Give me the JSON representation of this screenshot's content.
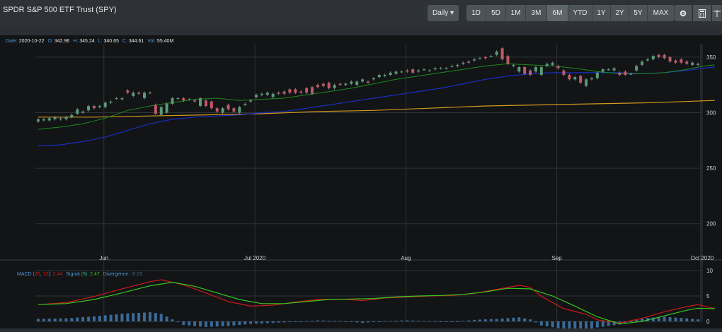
{
  "header": {
    "title": "SPDR S&P 500 ETF Trust (SPY)",
    "interval_label": "Daily",
    "ranges": [
      "1D",
      "5D",
      "1M",
      "3M",
      "6M",
      "YTD",
      "1Y",
      "2Y",
      "5Y",
      "MAX"
    ],
    "selected_range": "6M",
    "icons": [
      "settings-gear-icon",
      "calculator-icon",
      "scale-icon"
    ]
  },
  "ohlc_info": {
    "date_label": "Date:",
    "date": "2020-10-22",
    "open_label": "O:",
    "open": "342.96",
    "high_label": "H:",
    "high": "345.24",
    "low_label": "L:",
    "low": "340.65",
    "close_label": "C:",
    "close": "344.61",
    "vol_label": "Vol:",
    "volume": "55.40M"
  },
  "macd_info": {
    "prefix": "MACD (",
    "fast": "26",
    "sep": ", ",
    "slow": "12",
    "close_paren": "):",
    "macd_value": "2.44",
    "signal_label": "Signal (",
    "signal_period": "9",
    "signal_close": "):",
    "signal_value": "2.47",
    "div_label": "Divergence:",
    "div_value": "-0.03"
  },
  "colors": {
    "up": "#5a9a77",
    "down": "#c05a66",
    "ma_short": "#1d8a1d",
    "ma_mid": "#1a2ec0",
    "ma_long": "#d39a20",
    "macd": "#d01818",
    "signal": "#35c81e",
    "hist": "#3a6a98",
    "grid": "#2f3337"
  },
  "chart_data": [
    {
      "type": "candlestick",
      "x_ticks": [
        "Jun",
        "Jul 2020",
        "Aug",
        "Sep",
        "Oct 2020"
      ],
      "ylim": [
        175,
        362
      ],
      "y_ticks": [
        200,
        250,
        300,
        350
      ],
      "grid": true,
      "candles": [
        [
          292,
          294
        ],
        [
          293,
          294
        ],
        [
          293,
          295
        ],
        [
          294,
          296
        ],
        [
          294,
          295
        ],
        [
          294,
          296
        ],
        [
          296,
          298
        ],
        [
          299,
          303
        ],
        [
          300,
          301
        ],
        [
          302,
          306
        ],
        [
          306,
          304
        ],
        [
          305,
          306
        ],
        [
          305,
          309
        ],
        [
          309,
          310
        ],
        [
          313,
          313
        ],
        [
          312,
          313
        ],
        [
          320,
          318
        ],
        [
          315,
          318
        ],
        [
          318,
          317
        ],
        [
          313,
          318
        ],
        [
          318,
          318
        ],
        [
          307,
          299
        ],
        [
          298,
          305
        ],
        [
          300,
          308
        ],
        [
          308,
          313
        ],
        [
          313,
          313
        ],
        [
          313,
          311
        ],
        [
          312,
          312
        ],
        [
          311,
          310
        ],
        [
          306,
          313
        ],
        [
          311,
          306
        ],
        [
          310,
          304
        ],
        [
          304,
          301
        ],
        [
          300,
          304
        ],
        [
          307,
          303
        ],
        [
          304,
          301
        ],
        [
          300,
          305
        ],
        [
          307,
          308
        ],
        [
          310,
          311
        ],
        [
          314,
          316
        ],
        [
          316,
          317
        ],
        [
          316,
          318
        ],
        [
          314,
          317
        ],
        [
          318,
          317
        ],
        [
          319,
          317
        ],
        [
          321,
          318
        ],
        [
          321,
          318
        ],
        [
          319,
          318
        ],
        [
          322,
          318
        ],
        [
          323,
          317
        ],
        [
          325,
          323
        ],
        [
          326,
          324
        ],
        [
          327,
          322
        ],
        [
          322,
          325
        ],
        [
          326,
          325
        ],
        [
          325,
          326
        ],
        [
          326,
          328
        ],
        [
          325,
          328
        ],
        [
          328,
          330
        ],
        [
          328,
          327
        ],
        [
          330,
          331
        ],
        [
          332,
          334
        ],
        [
          333,
          334
        ],
        [
          334,
          336
        ],
        [
          335,
          337
        ],
        [
          337,
          337
        ],
        [
          338,
          337
        ],
        [
          339,
          336
        ],
        [
          337,
          338
        ],
        [
          339,
          339
        ],
        [
          338,
          338
        ],
        [
          339,
          340
        ],
        [
          340,
          340
        ],
        [
          340,
          340
        ],
        [
          342,
          342
        ],
        [
          342,
          343
        ],
        [
          344,
          345
        ],
        [
          346,
          345
        ],
        [
          347,
          348
        ],
        [
          349,
          349
        ],
        [
          350,
          349
        ],
        [
          351,
          351
        ],
        [
          352,
          355
        ],
        [
          358,
          348
        ],
        [
          351,
          344
        ],
        [
          342,
          343
        ],
        [
          337,
          341
        ],
        [
          341,
          335
        ],
        [
          338,
          334
        ],
        [
          337,
          341
        ],
        [
          334,
          341
        ],
        [
          342,
          344
        ],
        [
          343,
          345
        ],
        [
          342,
          340
        ],
        [
          338,
          334
        ],
        [
          334,
          330
        ],
        [
          330,
          332
        ],
        [
          333,
          327
        ],
        [
          324,
          330
        ],
        [
          330,
          331
        ],
        [
          331,
          336
        ],
        [
          337,
          339
        ],
        [
          339,
          339
        ],
        [
          338,
          340
        ],
        [
          336,
          334
        ],
        [
          337,
          334
        ],
        [
          335,
          335
        ],
        [
          338,
          342
        ],
        [
          343,
          346
        ],
        [
          347,
          348
        ],
        [
          348,
          351
        ],
        [
          352,
          350
        ],
        [
          352,
          349
        ],
        [
          350,
          346
        ],
        [
          347,
          345
        ],
        [
          348,
          345
        ],
        [
          346,
          344
        ],
        [
          343,
          345
        ],
        [
          343,
          344
        ]
      ],
      "ma_short": [
        [
          0,
          285
        ],
        [
          4,
          287
        ],
        [
          8,
          290
        ],
        [
          12,
          295
        ],
        [
          16,
          302
        ],
        [
          20,
          306
        ],
        [
          24,
          309
        ],
        [
          28,
          312
        ],
        [
          32,
          313
        ],
        [
          36,
          311
        ],
        [
          40,
          312
        ],
        [
          44,
          313
        ],
        [
          48,
          316
        ],
        [
          52,
          319
        ],
        [
          56,
          322
        ],
        [
          60,
          326
        ],
        [
          64,
          330
        ],
        [
          68,
          333
        ],
        [
          72,
          336
        ],
        [
          76,
          339
        ],
        [
          80,
          342
        ],
        [
          84,
          344
        ],
        [
          88,
          343
        ],
        [
          92,
          342
        ],
        [
          96,
          340
        ],
        [
          100,
          337
        ],
        [
          104,
          335
        ],
        [
          108,
          335
        ],
        [
          112,
          336
        ],
        [
          116,
          339
        ],
        [
          119,
          342
        ],
        [
          121,
          343
        ]
      ],
      "ma_mid": [
        [
          0,
          270
        ],
        [
          4,
          271
        ],
        [
          8,
          274
        ],
        [
          12,
          278
        ],
        [
          16,
          284
        ],
        [
          20,
          290
        ],
        [
          24,
          294
        ],
        [
          28,
          296
        ],
        [
          32,
          297
        ],
        [
          36,
          298
        ],
        [
          40,
          300
        ],
        [
          44,
          301
        ],
        [
          48,
          304
        ],
        [
          52,
          307
        ],
        [
          56,
          310
        ],
        [
          60,
          313
        ],
        [
          64,
          316
        ],
        [
          68,
          319
        ],
        [
          72,
          322
        ],
        [
          76,
          326
        ],
        [
          80,
          330
        ],
        [
          84,
          333
        ],
        [
          88,
          335
        ],
        [
          92,
          336
        ],
        [
          96,
          336
        ],
        [
          100,
          336
        ],
        [
          104,
          336
        ],
        [
          108,
          335
        ],
        [
          112,
          336
        ],
        [
          116,
          338
        ],
        [
          119,
          340
        ],
        [
          121,
          341
        ]
      ],
      "ma_long": [
        [
          0,
          296
        ],
        [
          10,
          296
        ],
        [
          20,
          297
        ],
        [
          30,
          298
        ],
        [
          40,
          299
        ],
        [
          50,
          301
        ],
        [
          60,
          302
        ],
        [
          70,
          304
        ],
        [
          80,
          306
        ],
        [
          90,
          307
        ],
        [
          100,
          308
        ],
        [
          110,
          309
        ],
        [
          121,
          311
        ]
      ]
    },
    {
      "type": "macd",
      "ylim": [
        0,
        10
      ],
      "y_ticks": [
        0,
        5,
        10
      ],
      "macd_line": [
        [
          0,
          3.3
        ],
        [
          5,
          3.7
        ],
        [
          10,
          4.9
        ],
        [
          15,
          6.4
        ],
        [
          20,
          7.8
        ],
        [
          22,
          8.2
        ],
        [
          26,
          7.2
        ],
        [
          30,
          5.6
        ],
        [
          34,
          3.9
        ],
        [
          38,
          3.0
        ],
        [
          42,
          3.2
        ],
        [
          46,
          3.8
        ],
        [
          50,
          4.3
        ],
        [
          54,
          4.4
        ],
        [
          58,
          4.1
        ],
        [
          62,
          4.6
        ],
        [
          66,
          4.8
        ],
        [
          70,
          5.0
        ],
        [
          74,
          5.1
        ],
        [
          78,
          5.5
        ],
        [
          82,
          6.3
        ],
        [
          86,
          7.1
        ],
        [
          88,
          6.7
        ],
        [
          90,
          4.9
        ],
        [
          94,
          2.5
        ],
        [
          98,
          1.4
        ],
        [
          100,
          0.3
        ],
        [
          104,
          -0.3
        ],
        [
          108,
          0.6
        ],
        [
          112,
          1.9
        ],
        [
          116,
          2.9
        ],
        [
          118,
          3.3
        ],
        [
          121,
          2.5
        ]
      ],
      "signal_line": [
        [
          0,
          3.3
        ],
        [
          5,
          3.5
        ],
        [
          10,
          4.3
        ],
        [
          15,
          5.6
        ],
        [
          20,
          7.0
        ],
        [
          24,
          7.7
        ],
        [
          28,
          6.9
        ],
        [
          32,
          5.6
        ],
        [
          36,
          4.3
        ],
        [
          40,
          3.5
        ],
        [
          44,
          3.5
        ],
        [
          48,
          3.9
        ],
        [
          52,
          4.3
        ],
        [
          56,
          4.4
        ],
        [
          60,
          4.5
        ],
        [
          64,
          4.8
        ],
        [
          68,
          5.0
        ],
        [
          72,
          5.1
        ],
        [
          76,
          5.3
        ],
        [
          80,
          5.8
        ],
        [
          84,
          6.5
        ],
        [
          88,
          6.4
        ],
        [
          92,
          5.0
        ],
        [
          96,
          3.0
        ],
        [
          100,
          0.9
        ],
        [
          104,
          -0.5
        ],
        [
          108,
          0.0
        ],
        [
          112,
          1.1
        ],
        [
          116,
          2.2
        ],
        [
          118,
          2.6
        ],
        [
          121,
          2.5
        ]
      ],
      "histogram": [
        [
          0,
          0.5
        ],
        [
          5,
          0.6
        ],
        [
          10,
          1.0
        ],
        [
          15,
          1.5
        ],
        [
          20,
          1.8
        ],
        [
          22,
          1.5
        ],
        [
          26,
          -0.7
        ],
        [
          30,
          -1.1
        ],
        [
          34,
          -0.9
        ],
        [
          38,
          -0.5
        ],
        [
          42,
          -0.3
        ],
        [
          46,
          -0.1
        ],
        [
          50,
          0.2
        ],
        [
          54,
          0.1
        ],
        [
          58,
          -0.3
        ],
        [
          62,
          0.1
        ],
        [
          66,
          0.2
        ],
        [
          70,
          0.1
        ],
        [
          74,
          -0.1
        ],
        [
          78,
          0.3
        ],
        [
          82,
          0.5
        ],
        [
          86,
          0.8
        ],
        [
          88,
          0.4
        ],
        [
          90,
          -0.8
        ],
        [
          94,
          -1.5
        ],
        [
          98,
          -1.6
        ],
        [
          100,
          -1.2
        ],
        [
          104,
          -0.6
        ],
        [
          108,
          0.6
        ],
        [
          112,
          0.9
        ],
        [
          116,
          0.6
        ],
        [
          118,
          0.4
        ],
        [
          121,
          -0.03
        ]
      ]
    }
  ]
}
